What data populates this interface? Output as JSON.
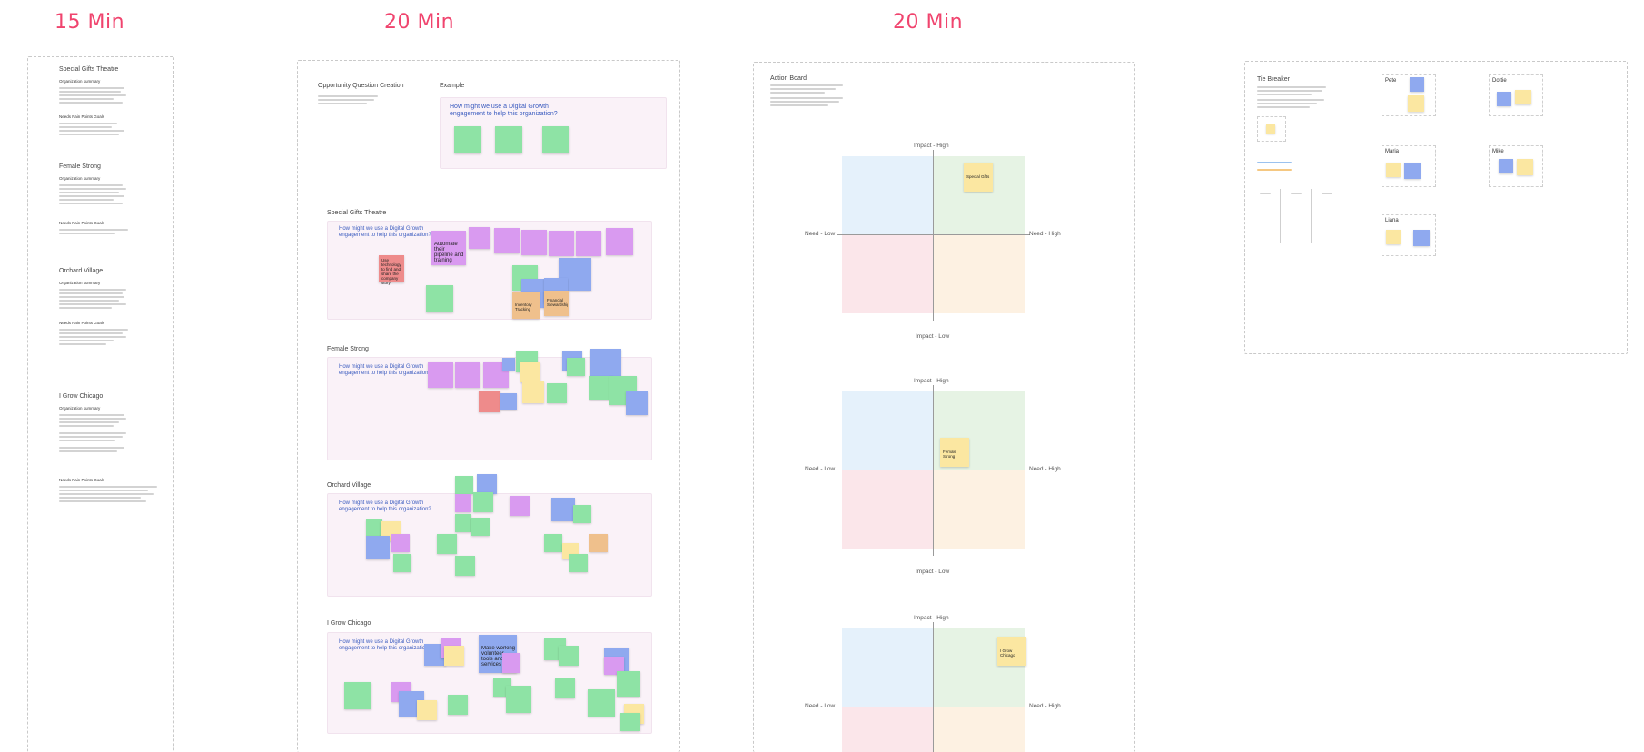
{
  "timers": [
    "15 Min",
    "20 Min",
    "20 Min"
  ],
  "info": {
    "sections": [
      {
        "title": "Special Gifts Theatre",
        "sub": "Organization summary",
        "sub2": "Needs Pain Points Goals"
      },
      {
        "title": "Female Strong",
        "sub": "Organization summary",
        "sub2": "Needs Pain Points Goals"
      },
      {
        "title": "Orchard Village",
        "sub": "Organization summary",
        "sub2": "Needs Pain Points Goals"
      },
      {
        "title": "I Grow Chicago",
        "sub": "Organization summary",
        "sub2": "Needs Pain Points Goals"
      }
    ]
  },
  "oqc": {
    "title": "Opportunity Question Creation",
    "example_label": "Example",
    "example_question": "How might we use a Digital Growth engagement to help this organization?",
    "groups": [
      {
        "title": "Special Gifts Theatre",
        "question": "How might we use a Digital Growth engagement to help this organization?"
      },
      {
        "title": "Female Strong",
        "question": "How might we use a Digital Growth engagement to help this organization?"
      },
      {
        "title": "Orchard Village",
        "question": "How might we use a Digital Growth engagement to help this organization?"
      },
      {
        "title": "I Grow Chicago",
        "question": "How might we use a Digital Growth engagement to help this organization?"
      }
    ],
    "sticky_texts": {
      "sg_big": "Automate their pipeline and training",
      "ig_big": "Make working volunteer tools and services",
      "sg_red": "Use technology to find and share the company story",
      "sg_orange1": "Inventory Tracking",
      "sg_orange2": "Financial Stewardship"
    }
  },
  "action_board": {
    "title": "Action Board",
    "matrices": [
      {
        "top": "Impact - High",
        "bottom": "Impact - Low",
        "left": "Need - Low",
        "right": "Need - High",
        "sticky": "Special Gifts"
      },
      {
        "top": "Impact - High",
        "bottom": "Impact - Low",
        "left": "Need - Low",
        "right": "Need - High",
        "sticky": "Female Strong"
      },
      {
        "top": "Impact - High",
        "bottom": "",
        "left": "Need - Low",
        "right": "Need - High",
        "sticky": "I Grow Chicago"
      }
    ]
  },
  "tie_breaker": {
    "title": "Tie Breaker",
    "people": [
      "Pete",
      "Dottie",
      "Maria",
      "Mike",
      "Liana"
    ]
  },
  "colors": {
    "accent": "#f0446e",
    "hmw_blue": "#3a5bbf"
  }
}
